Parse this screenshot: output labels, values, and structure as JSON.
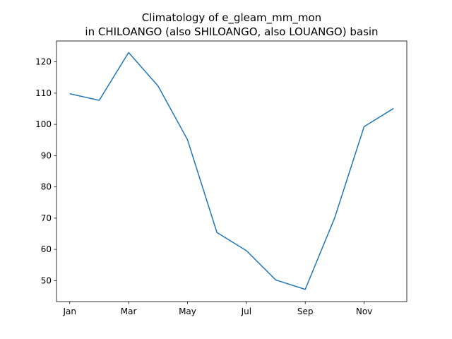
{
  "chart_data": {
    "type": "line",
    "title_line1": "Climatology of e_gleam_mm_mon",
    "title_line2": "in CHILOANGO (also SHILOANGO, also LOUANGO) basin",
    "xlabel": "",
    "ylabel": "",
    "x": [
      1,
      2,
      3,
      4,
      5,
      6,
      7,
      8,
      9,
      10,
      11,
      12
    ],
    "x_ticks": [
      1,
      3,
      5,
      7,
      9,
      11
    ],
    "x_tick_labels": [
      "Jan",
      "Mar",
      "May",
      "Jul",
      "Sep",
      "Nov"
    ],
    "xlim": [
      0.55,
      12.45
    ],
    "y_ticks": [
      50,
      60,
      70,
      80,
      90,
      100,
      110,
      120
    ],
    "y_tick_labels": [
      "50",
      "60",
      "70",
      "80",
      "90",
      "100",
      "110",
      "120"
    ],
    "ylim": [
      43.3,
      126.7
    ],
    "grid": false,
    "series": [
      {
        "color": "#1f77b4",
        "values": [
          109.8,
          107.7,
          123.0,
          112.3,
          95.1,
          65.4,
          59.6,
          50.2,
          47.2,
          70.1,
          99.3,
          105.1
        ]
      }
    ]
  }
}
